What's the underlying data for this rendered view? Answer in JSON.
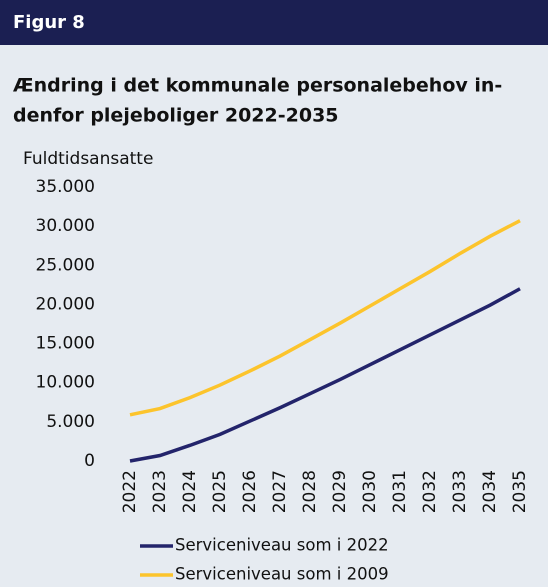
{
  "chart_data": {
    "type": "line",
    "figure_label": "Figur 8",
    "title": [
      "Ændring i det kommunale personalebehov in-",
      "denfor plejeboliger 2022-2035"
    ],
    "ylabel": "Fuldtidsansatte",
    "categories": [
      "2022",
      "2023",
      "2024",
      "2025",
      "2026",
      "2027",
      "2028",
      "2029",
      "2030",
      "2031",
      "2032",
      "2033",
      "2034",
      "2035"
    ],
    "series": [
      {
        "name": "Serviceniveau som i 2022",
        "color": "#23246b",
        "values": [
          0,
          700,
          2000,
          3400,
          5100,
          6800,
          8600,
          10400,
          12300,
          14200,
          16100,
          18000,
          19900,
          22000
        ]
      },
      {
        "name": "Serviceniveau som i 2009",
        "color": "#fcc42c",
        "values": [
          5900,
          6700,
          8100,
          9700,
          11500,
          13400,
          15500,
          17600,
          19800,
          22000,
          24200,
          26500,
          28700,
          30700
        ]
      }
    ],
    "ylim": [
      0,
      35000
    ],
    "yticks": [
      0,
      {
        "value": 5000,
        "label": "5.000"
      },
      {
        "value": 10000,
        "label": "10.000"
      },
      {
        "value": 15000,
        "label": "15.000"
      },
      {
        "value": 20000,
        "label": "20.000"
      },
      {
        "value": 25000,
        "label": "25.000"
      },
      {
        "value": 30000,
        "label": "30.000"
      },
      {
        "value": 35000,
        "label": "35.000"
      }
    ],
    "grid": false
  }
}
